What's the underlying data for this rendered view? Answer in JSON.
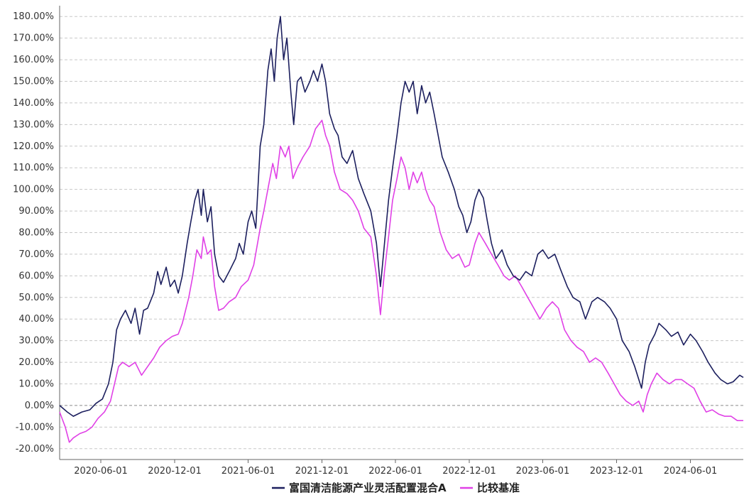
{
  "chart_data": {
    "type": "line",
    "title": "",
    "xlabel": "",
    "ylabel": "",
    "x_range": [
      "2020-02-20",
      "2024-10-10"
    ],
    "ylim": [
      -25,
      185
    ],
    "y_tick_values": [
      -20,
      -10,
      0,
      10,
      20,
      30,
      40,
      50,
      60,
      70,
      80,
      90,
      100,
      110,
      120,
      130,
      140,
      150,
      160,
      170,
      180
    ],
    "y_tick_labels": [
      "-20.00%",
      "-10.00%",
      "0.00%",
      "10.00%",
      "20.00%",
      "30.00%",
      "40.00%",
      "50.00%",
      "60.00%",
      "70.00%",
      "80.00%",
      "90.00%",
      "100.00%",
      "110.00%",
      "120.00%",
      "130.00%",
      "140.00%",
      "150.00%",
      "160.00%",
      "170.00%",
      "180.00%"
    ],
    "x_ticks": [
      "2020-06-01",
      "2020-12-01",
      "2021-06-01",
      "2021-12-01",
      "2022-06-01",
      "2022-12-01",
      "2023-06-01",
      "2023-12-01",
      "2024-06-01"
    ],
    "grid": true,
    "legend_position": "bottom",
    "series": [
      {
        "name": "富国清洁能源产业灵活配置混合A",
        "color": "#1c1f5e",
        "points": [
          [
            "2020-02-20",
            0
          ],
          [
            "2020-03-10",
            -3
          ],
          [
            "2020-03-25",
            -5
          ],
          [
            "2020-04-15",
            -3
          ],
          [
            "2020-05-05",
            -2
          ],
          [
            "2020-05-20",
            1
          ],
          [
            "2020-06-05",
            3
          ],
          [
            "2020-06-20",
            10
          ],
          [
            "2020-07-01",
            20
          ],
          [
            "2020-07-10",
            35
          ],
          [
            "2020-07-20",
            40
          ],
          [
            "2020-08-01",
            44
          ],
          [
            "2020-08-15",
            38
          ],
          [
            "2020-08-25",
            45
          ],
          [
            "2020-09-05",
            33
          ],
          [
            "2020-09-15",
            44
          ],
          [
            "2020-09-25",
            45
          ],
          [
            "2020-10-10",
            52
          ],
          [
            "2020-10-20",
            62
          ],
          [
            "2020-10-28",
            56
          ],
          [
            "2020-11-10",
            64
          ],
          [
            "2020-11-20",
            55
          ],
          [
            "2020-12-01",
            58
          ],
          [
            "2020-12-10",
            52
          ],
          [
            "2020-12-20",
            60
          ],
          [
            "2021-01-01",
            75
          ],
          [
            "2021-01-10",
            85
          ],
          [
            "2021-01-20",
            95
          ],
          [
            "2021-01-28",
            100
          ],
          [
            "2021-02-05",
            88
          ],
          [
            "2021-02-10",
            100
          ],
          [
            "2021-02-20",
            85
          ],
          [
            "2021-03-01",
            92
          ],
          [
            "2021-03-10",
            70
          ],
          [
            "2021-03-20",
            60
          ],
          [
            "2021-04-01",
            57
          ],
          [
            "2021-04-15",
            62
          ],
          [
            "2021-05-01",
            68
          ],
          [
            "2021-05-10",
            75
          ],
          [
            "2021-05-20",
            70
          ],
          [
            "2021-06-01",
            85
          ],
          [
            "2021-06-10",
            90
          ],
          [
            "2021-06-20",
            82
          ],
          [
            "2021-07-01",
            120
          ],
          [
            "2021-07-10",
            130
          ],
          [
            "2021-07-20",
            155
          ],
          [
            "2021-07-28",
            165
          ],
          [
            "2021-08-05",
            150
          ],
          [
            "2021-08-12",
            170
          ],
          [
            "2021-08-20",
            180
          ],
          [
            "2021-08-28",
            160
          ],
          [
            "2021-09-05",
            170
          ],
          [
            "2021-09-15",
            145
          ],
          [
            "2021-09-22",
            130
          ],
          [
            "2021-10-01",
            150
          ],
          [
            "2021-10-10",
            152
          ],
          [
            "2021-10-20",
            145
          ],
          [
            "2021-11-01",
            150
          ],
          [
            "2021-11-10",
            155
          ],
          [
            "2021-11-20",
            150
          ],
          [
            "2021-12-01",
            158
          ],
          [
            "2021-12-10",
            150
          ],
          [
            "2021-12-20",
            135
          ],
          [
            "2022-01-01",
            128
          ],
          [
            "2022-01-10",
            125
          ],
          [
            "2022-01-20",
            115
          ],
          [
            "2022-02-01",
            112
          ],
          [
            "2022-02-15",
            118
          ],
          [
            "2022-03-01",
            105
          ],
          [
            "2022-03-15",
            98
          ],
          [
            "2022-04-01",
            90
          ],
          [
            "2022-04-15",
            75
          ],
          [
            "2022-04-25",
            55
          ],
          [
            "2022-05-05",
            75
          ],
          [
            "2022-05-15",
            95
          ],
          [
            "2022-05-25",
            110
          ],
          [
            "2022-06-05",
            125
          ],
          [
            "2022-06-15",
            140
          ],
          [
            "2022-06-25",
            150
          ],
          [
            "2022-07-05",
            145
          ],
          [
            "2022-07-15",
            150
          ],
          [
            "2022-07-25",
            135
          ],
          [
            "2022-08-05",
            148
          ],
          [
            "2022-08-15",
            140
          ],
          [
            "2022-08-25",
            145
          ],
          [
            "2022-09-05",
            135
          ],
          [
            "2022-09-15",
            125
          ],
          [
            "2022-09-25",
            115
          ],
          [
            "2022-10-10",
            108
          ],
          [
            "2022-10-25",
            100
          ],
          [
            "2022-11-05",
            92
          ],
          [
            "2022-11-15",
            88
          ],
          [
            "2022-11-25",
            80
          ],
          [
            "2022-12-05",
            85
          ],
          [
            "2022-12-15",
            95
          ],
          [
            "2022-12-25",
            100
          ],
          [
            "2023-01-05",
            96
          ],
          [
            "2023-01-15",
            85
          ],
          [
            "2023-01-25",
            75
          ],
          [
            "2023-02-05",
            68
          ],
          [
            "2023-02-20",
            72
          ],
          [
            "2023-03-05",
            65
          ],
          [
            "2023-03-20",
            60
          ],
          [
            "2023-04-05",
            58
          ],
          [
            "2023-04-20",
            62
          ],
          [
            "2023-05-05",
            60
          ],
          [
            "2023-05-20",
            70
          ],
          [
            "2023-06-01",
            72
          ],
          [
            "2023-06-15",
            68
          ],
          [
            "2023-07-01",
            70
          ],
          [
            "2023-07-15",
            63
          ],
          [
            "2023-08-01",
            55
          ],
          [
            "2023-08-15",
            50
          ],
          [
            "2023-09-01",
            48
          ],
          [
            "2023-09-15",
            40
          ],
          [
            "2023-10-01",
            48
          ],
          [
            "2023-10-15",
            50
          ],
          [
            "2023-11-01",
            48
          ],
          [
            "2023-11-15",
            45
          ],
          [
            "2023-12-01",
            40
          ],
          [
            "2023-12-15",
            30
          ],
          [
            "2024-01-01",
            25
          ],
          [
            "2024-01-15",
            18
          ],
          [
            "2024-02-01",
            8
          ],
          [
            "2024-02-10",
            20
          ],
          [
            "2024-02-20",
            28
          ],
          [
            "2024-03-05",
            33
          ],
          [
            "2024-03-15",
            38
          ],
          [
            "2024-04-01",
            35
          ],
          [
            "2024-04-15",
            32
          ],
          [
            "2024-05-01",
            34
          ],
          [
            "2024-05-15",
            28
          ],
          [
            "2024-06-01",
            33
          ],
          [
            "2024-06-15",
            30
          ],
          [
            "2024-07-01",
            25
          ],
          [
            "2024-07-15",
            20
          ],
          [
            "2024-08-01",
            15
          ],
          [
            "2024-08-15",
            12
          ],
          [
            "2024-09-01",
            10
          ],
          [
            "2024-09-15",
            11
          ],
          [
            "2024-10-01",
            14
          ],
          [
            "2024-10-10",
            13
          ]
        ]
      },
      {
        "name": "比较基准",
        "color": "#e040e6",
        "points": [
          [
            "2020-02-20",
            -3
          ],
          [
            "2020-03-05",
            -10
          ],
          [
            "2020-03-15",
            -17
          ],
          [
            "2020-03-25",
            -15
          ],
          [
            "2020-04-10",
            -13
          ],
          [
            "2020-04-25",
            -12
          ],
          [
            "2020-05-10",
            -10
          ],
          [
            "2020-05-25",
            -6
          ],
          [
            "2020-06-10",
            -3
          ],
          [
            "2020-06-25",
            2
          ],
          [
            "2020-07-05",
            10
          ],
          [
            "2020-07-15",
            18
          ],
          [
            "2020-07-25",
            20
          ],
          [
            "2020-08-10",
            18
          ],
          [
            "2020-08-25",
            20
          ],
          [
            "2020-09-10",
            14
          ],
          [
            "2020-09-25",
            18
          ],
          [
            "2020-10-10",
            22
          ],
          [
            "2020-10-25",
            27
          ],
          [
            "2020-11-10",
            30
          ],
          [
            "2020-11-25",
            32
          ],
          [
            "2020-12-10",
            33
          ],
          [
            "2020-12-20",
            38
          ],
          [
            "2021-01-05",
            50
          ],
          [
            "2021-01-15",
            60
          ],
          [
            "2021-01-25",
            72
          ],
          [
            "2021-02-05",
            68
          ],
          [
            "2021-02-10",
            78
          ],
          [
            "2021-02-20",
            70
          ],
          [
            "2021-03-01",
            72
          ],
          [
            "2021-03-10",
            55
          ],
          [
            "2021-03-20",
            44
          ],
          [
            "2021-04-01",
            45
          ],
          [
            "2021-04-15",
            48
          ],
          [
            "2021-05-01",
            50
          ],
          [
            "2021-05-15",
            55
          ],
          [
            "2021-06-01",
            58
          ],
          [
            "2021-06-15",
            65
          ],
          [
            "2021-07-01",
            82
          ],
          [
            "2021-07-10",
            90
          ],
          [
            "2021-07-20",
            100
          ],
          [
            "2021-08-01",
            112
          ],
          [
            "2021-08-10",
            105
          ],
          [
            "2021-08-20",
            120
          ],
          [
            "2021-09-01",
            115
          ],
          [
            "2021-09-10",
            120
          ],
          [
            "2021-09-20",
            105
          ],
          [
            "2021-10-01",
            110
          ],
          [
            "2021-10-15",
            115
          ],
          [
            "2021-11-01",
            120
          ],
          [
            "2021-11-15",
            128
          ],
          [
            "2021-12-01",
            132
          ],
          [
            "2021-12-10",
            125
          ],
          [
            "2021-12-20",
            120
          ],
          [
            "2022-01-01",
            108
          ],
          [
            "2022-01-15",
            100
          ],
          [
            "2022-02-01",
            98
          ],
          [
            "2022-02-15",
            95
          ],
          [
            "2022-03-01",
            90
          ],
          [
            "2022-03-15",
            82
          ],
          [
            "2022-04-01",
            78
          ],
          [
            "2022-04-15",
            60
          ],
          [
            "2022-04-25",
            42
          ],
          [
            "2022-05-05",
            62
          ],
          [
            "2022-05-15",
            78
          ],
          [
            "2022-05-25",
            95
          ],
          [
            "2022-06-05",
            105
          ],
          [
            "2022-06-15",
            115
          ],
          [
            "2022-06-25",
            110
          ],
          [
            "2022-07-05",
            100
          ],
          [
            "2022-07-15",
            108
          ],
          [
            "2022-07-25",
            103
          ],
          [
            "2022-08-05",
            108
          ],
          [
            "2022-08-15",
            100
          ],
          [
            "2022-08-25",
            95
          ],
          [
            "2022-09-05",
            92
          ],
          [
            "2022-09-20",
            80
          ],
          [
            "2022-10-05",
            72
          ],
          [
            "2022-10-20",
            68
          ],
          [
            "2022-11-05",
            70
          ],
          [
            "2022-11-20",
            64
          ],
          [
            "2022-12-01",
            65
          ],
          [
            "2022-12-15",
            75
          ],
          [
            "2022-12-25",
            80
          ],
          [
            "2023-01-10",
            75
          ],
          [
            "2023-01-25",
            70
          ],
          [
            "2023-02-10",
            65
          ],
          [
            "2023-02-25",
            60
          ],
          [
            "2023-03-10",
            58
          ],
          [
            "2023-03-25",
            60
          ],
          [
            "2023-04-10",
            55
          ],
          [
            "2023-04-25",
            50
          ],
          [
            "2023-05-10",
            45
          ],
          [
            "2023-05-25",
            40
          ],
          [
            "2023-06-10",
            45
          ],
          [
            "2023-06-25",
            48
          ],
          [
            "2023-07-10",
            45
          ],
          [
            "2023-07-25",
            35
          ],
          [
            "2023-08-10",
            30
          ],
          [
            "2023-08-25",
            27
          ],
          [
            "2023-09-10",
            25
          ],
          [
            "2023-09-25",
            20
          ],
          [
            "2023-10-10",
            22
          ],
          [
            "2023-10-25",
            20
          ],
          [
            "2023-11-10",
            15
          ],
          [
            "2023-11-25",
            10
          ],
          [
            "2023-12-10",
            5
          ],
          [
            "2023-12-25",
            2
          ],
          [
            "2024-01-10",
            0
          ],
          [
            "2024-01-25",
            2
          ],
          [
            "2024-02-05",
            -3
          ],
          [
            "2024-02-15",
            5
          ],
          [
            "2024-02-25",
            10
          ],
          [
            "2024-03-10",
            15
          ],
          [
            "2024-03-25",
            12
          ],
          [
            "2024-04-10",
            10
          ],
          [
            "2024-04-25",
            12
          ],
          [
            "2024-05-10",
            12
          ],
          [
            "2024-05-25",
            10
          ],
          [
            "2024-06-10",
            8
          ],
          [
            "2024-06-25",
            2
          ],
          [
            "2024-07-10",
            -3
          ],
          [
            "2024-07-25",
            -2
          ],
          [
            "2024-08-10",
            -4
          ],
          [
            "2024-08-25",
            -5
          ],
          [
            "2024-09-10",
            -5
          ],
          [
            "2024-09-25",
            -7
          ],
          [
            "2024-10-10",
            -7
          ]
        ]
      }
    ]
  }
}
